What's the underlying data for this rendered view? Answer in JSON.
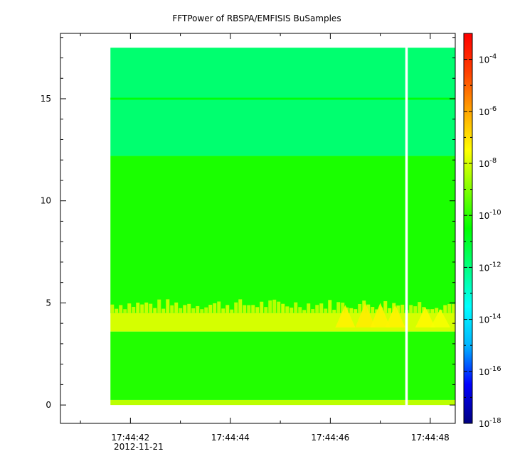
{
  "chart_data": {
    "type": "heatmap",
    "title": "FFTPower of RBSPA/EMFISIS  BuSamples",
    "date_label": "2012-11-21",
    "x_range": [
      "17:44:40.6",
      "17:44:48.5"
    ],
    "data_time_range": [
      "17:44:41.6",
      "17:44:48.5"
    ],
    "data_gap": [
      "17:44:47.5",
      "17:44:47.55"
    ],
    "x_ticks": [
      {
        "value": "17:44:42",
        "label": "17:44:42"
      },
      {
        "value": "17:44:44",
        "label": "17:44:44"
      },
      {
        "value": "17:44:46",
        "label": "17:44:46"
      },
      {
        "value": "17:44:48",
        "label": "17:44:48"
      }
    ],
    "ylim": [
      -0.9,
      18.2
    ],
    "y_data_range": [
      0,
      17.5
    ],
    "y_ticks": [
      0,
      5,
      10,
      15
    ],
    "colorbar": {
      "scale": "log",
      "range": [
        1e-18,
        0.001
      ],
      "ticks": [
        {
          "value": 1e-18,
          "base": "10",
          "exp": "-18"
        },
        {
          "value": 1e-16,
          "base": "10",
          "exp": "-16"
        },
        {
          "value": 1e-14,
          "base": "10",
          "exp": "-14"
        },
        {
          "value": 1e-12,
          "base": "10",
          "exp": "-12"
        },
        {
          "value": 1e-10,
          "base": "10",
          "exp": "-10"
        },
        {
          "value": 1e-08,
          "base": "10",
          "exp": "-8"
        },
        {
          "value": 1e-06,
          "base": "10",
          "exp": "-6"
        },
        {
          "value": 0.0001,
          "base": "10",
          "exp": "-4"
        }
      ],
      "colormap": [
        "#000080",
        "#0000ff",
        "#00b4ff",
        "#00ffff",
        "#00ff80",
        "#00ff00",
        "#80ff00",
        "#ffff00",
        "#ffa500",
        "#ff4000",
        "#ff0000"
      ]
    },
    "bands": [
      {
        "y_range": [
          0,
          0.25
        ],
        "log10_power": -8.3
      },
      {
        "y_range": [
          0.25,
          3.6
        ],
        "log10_power": -10.1
      },
      {
        "y_range": [
          3.6,
          4.5
        ],
        "log10_power": -8.0
      },
      {
        "y_range": [
          4.5,
          12.2
        ],
        "log10_power": -10.2
      },
      {
        "y_range": [
          12.2,
          17.5
        ],
        "log10_power": -11.8
      },
      {
        "y_range": [
          14.95,
          15.05
        ],
        "log10_power": -10.6
      }
    ],
    "emission_peaks": [
      {
        "time": "17:44:46.3",
        "y": 4.9,
        "log10_power": -7.3
      },
      {
        "time": "17:44:46.7",
        "y": 5.0,
        "log10_power": -7.2
      },
      {
        "time": "17:44:47.0",
        "y": 5.0,
        "log10_power": -7.3
      },
      {
        "time": "17:44:47.3",
        "y": 4.9,
        "log10_power": -7.3
      },
      {
        "time": "17:44:47.9",
        "y": 4.8,
        "log10_power": -7.4
      },
      {
        "time": "17:44:48.2",
        "y": 4.7,
        "log10_power": -7.6
      }
    ]
  }
}
